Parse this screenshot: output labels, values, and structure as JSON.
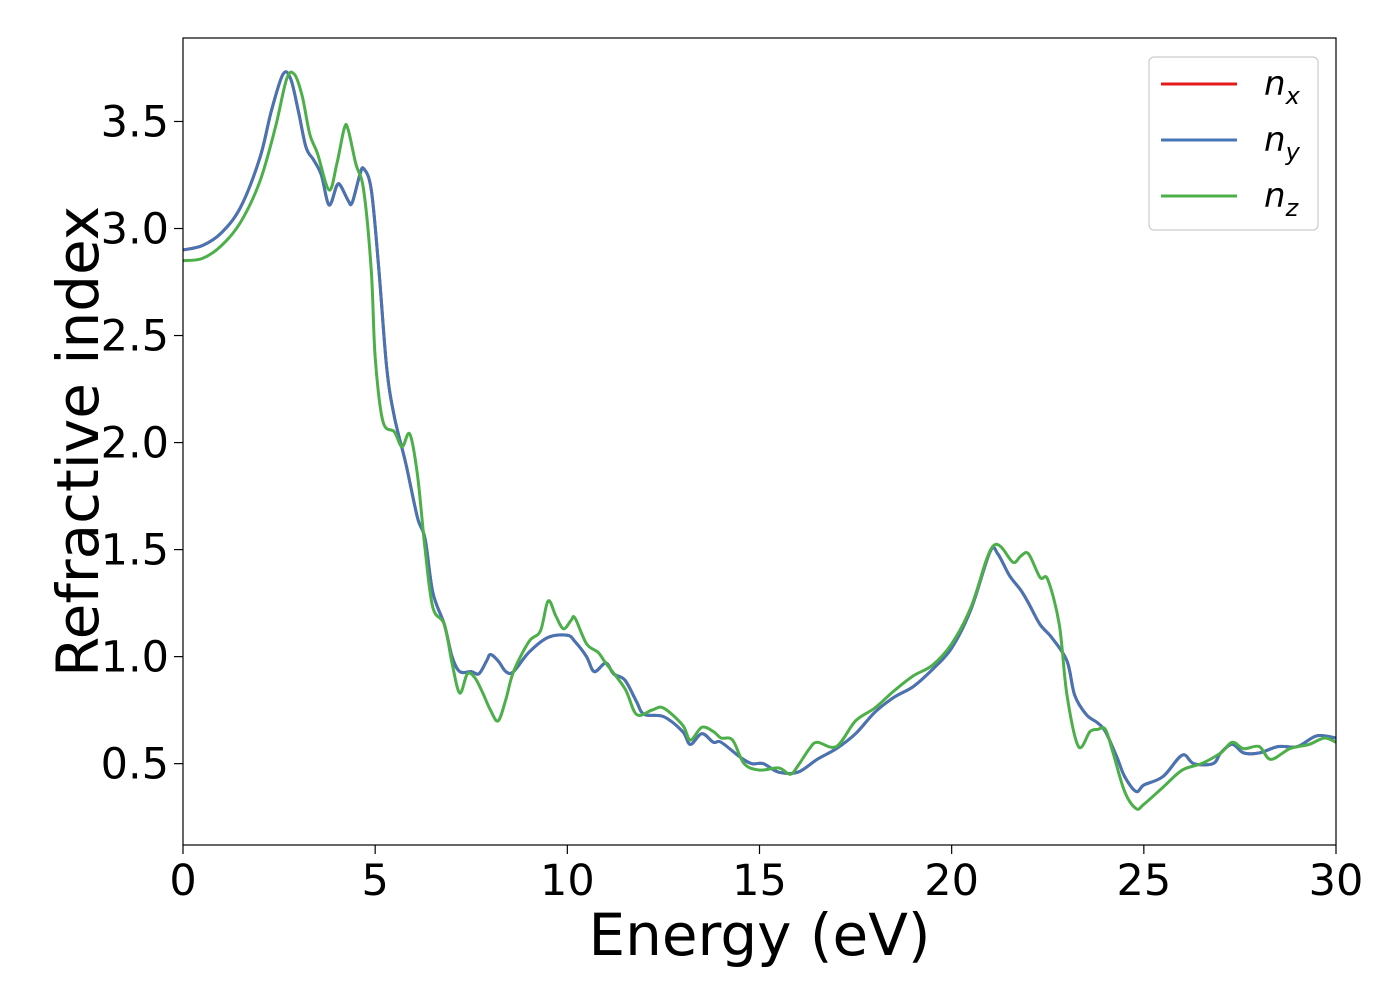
{
  "chart_data": {
    "type": "line",
    "title": "",
    "xlabel": "Energy (eV)",
    "ylabel": "Refractive index",
    "xlim": [
      0,
      30
    ],
    "ylim": [
      0.12,
      3.89
    ],
    "xticks": [
      0,
      5,
      10,
      15,
      20,
      25,
      30
    ],
    "xtick_labels": [
      "0",
      "5",
      "10",
      "15",
      "20",
      "25",
      "30"
    ],
    "yticks": [
      0.5,
      1.0,
      1.5,
      2.0,
      2.5,
      3.0,
      3.5
    ],
    "ytick_labels": [
      "0.5",
      "1.0",
      "1.5",
      "2.0",
      "2.5",
      "3.0",
      "3.5"
    ],
    "grid": false,
    "legend_position": "top-right",
    "series": [
      {
        "name": "n_x",
        "label_base": "n",
        "label_sub": "x",
        "color": "#e41a1c",
        "points": [
          [
            0,
            2.9
          ],
          [
            0.5,
            2.92
          ],
          [
            1.0,
            2.98
          ],
          [
            1.5,
            3.1
          ],
          [
            2.0,
            3.33
          ],
          [
            2.3,
            3.55
          ],
          [
            2.6,
            3.72
          ],
          [
            2.8,
            3.7
          ],
          [
            3.0,
            3.55
          ],
          [
            3.2,
            3.38
          ],
          [
            3.4,
            3.32
          ],
          [
            3.6,
            3.25
          ],
          [
            3.8,
            3.11
          ],
          [
            4.0,
            3.2
          ],
          [
            4.1,
            3.2
          ],
          [
            4.3,
            3.13
          ],
          [
            4.4,
            3.12
          ],
          [
            4.6,
            3.25
          ],
          [
            4.7,
            3.28
          ],
          [
            4.9,
            3.18
          ],
          [
            5.1,
            2.8
          ],
          [
            5.3,
            2.35
          ],
          [
            5.5,
            2.12
          ],
          [
            5.8,
            1.9
          ],
          [
            6.1,
            1.65
          ],
          [
            6.3,
            1.55
          ],
          [
            6.5,
            1.3
          ],
          [
            6.8,
            1.15
          ],
          [
            7.0,
            1.0
          ],
          [
            7.2,
            0.93
          ],
          [
            7.5,
            0.93
          ],
          [
            7.7,
            0.92
          ],
          [
            7.9,
            0.98
          ],
          [
            8.0,
            1.01
          ],
          [
            8.2,
            0.98
          ],
          [
            8.4,
            0.93
          ],
          [
            8.6,
            0.93
          ],
          [
            9.0,
            1.02
          ],
          [
            9.5,
            1.09
          ],
          [
            10.0,
            1.1
          ],
          [
            10.2,
            1.07
          ],
          [
            10.5,
            1.0
          ],
          [
            10.7,
            0.93
          ],
          [
            11.0,
            0.97
          ],
          [
            11.2,
            0.92
          ],
          [
            11.5,
            0.89
          ],
          [
            11.8,
            0.79
          ],
          [
            12.0,
            0.73
          ],
          [
            12.5,
            0.72
          ],
          [
            13.0,
            0.65
          ],
          [
            13.2,
            0.59
          ],
          [
            13.5,
            0.64
          ],
          [
            13.8,
            0.6
          ],
          [
            14.0,
            0.6
          ],
          [
            14.5,
            0.53
          ],
          [
            14.8,
            0.5
          ],
          [
            15.1,
            0.5
          ],
          [
            15.5,
            0.46
          ],
          [
            16.0,
            0.46
          ],
          [
            16.5,
            0.52
          ],
          [
            17.0,
            0.57
          ],
          [
            17.5,
            0.64
          ],
          [
            18.0,
            0.74
          ],
          [
            18.5,
            0.81
          ],
          [
            19.0,
            0.86
          ],
          [
            19.5,
            0.94
          ],
          [
            20.0,
            1.04
          ],
          [
            20.5,
            1.22
          ],
          [
            21.0,
            1.49
          ],
          [
            21.2,
            1.48
          ],
          [
            21.5,
            1.38
          ],
          [
            21.8,
            1.31
          ],
          [
            22.0,
            1.25
          ],
          [
            22.3,
            1.15
          ],
          [
            22.6,
            1.09
          ],
          [
            23.0,
            0.98
          ],
          [
            23.2,
            0.82
          ],
          [
            23.5,
            0.73
          ],
          [
            23.8,
            0.69
          ],
          [
            24.0,
            0.65
          ],
          [
            24.3,
            0.53
          ],
          [
            24.5,
            0.44
          ],
          [
            24.8,
            0.37
          ],
          [
            25.0,
            0.4
          ],
          [
            25.5,
            0.44
          ],
          [
            26.0,
            0.54
          ],
          [
            26.3,
            0.5
          ],
          [
            26.8,
            0.5
          ],
          [
            27.0,
            0.55
          ],
          [
            27.3,
            0.59
          ],
          [
            27.6,
            0.55
          ],
          [
            28.0,
            0.55
          ],
          [
            28.5,
            0.58
          ],
          [
            29.0,
            0.58
          ],
          [
            29.5,
            0.63
          ],
          [
            30.0,
            0.62
          ]
        ]
      },
      {
        "name": "n_y",
        "label_base": "n",
        "label_sub": "y",
        "color": "#4575b4",
        "points": [
          [
            0,
            2.9
          ],
          [
            0.5,
            2.92
          ],
          [
            1.0,
            2.98
          ],
          [
            1.5,
            3.1
          ],
          [
            2.0,
            3.33
          ],
          [
            2.3,
            3.55
          ],
          [
            2.6,
            3.72
          ],
          [
            2.8,
            3.7
          ],
          [
            3.0,
            3.55
          ],
          [
            3.2,
            3.38
          ],
          [
            3.4,
            3.32
          ],
          [
            3.6,
            3.25
          ],
          [
            3.8,
            3.11
          ],
          [
            4.0,
            3.2
          ],
          [
            4.1,
            3.2
          ],
          [
            4.3,
            3.13
          ],
          [
            4.4,
            3.12
          ],
          [
            4.6,
            3.25
          ],
          [
            4.7,
            3.28
          ],
          [
            4.9,
            3.18
          ],
          [
            5.1,
            2.8
          ],
          [
            5.3,
            2.35
          ],
          [
            5.5,
            2.12
          ],
          [
            5.8,
            1.9
          ],
          [
            6.1,
            1.65
          ],
          [
            6.3,
            1.55
          ],
          [
            6.5,
            1.3
          ],
          [
            6.8,
            1.15
          ],
          [
            7.0,
            1.0
          ],
          [
            7.2,
            0.93
          ],
          [
            7.5,
            0.93
          ],
          [
            7.7,
            0.92
          ],
          [
            7.9,
            0.98
          ],
          [
            8.0,
            1.01
          ],
          [
            8.2,
            0.98
          ],
          [
            8.4,
            0.93
          ],
          [
            8.6,
            0.93
          ],
          [
            9.0,
            1.02
          ],
          [
            9.5,
            1.09
          ],
          [
            10.0,
            1.1
          ],
          [
            10.2,
            1.07
          ],
          [
            10.5,
            1.0
          ],
          [
            10.7,
            0.93
          ],
          [
            11.0,
            0.97
          ],
          [
            11.2,
            0.92
          ],
          [
            11.5,
            0.89
          ],
          [
            11.8,
            0.79
          ],
          [
            12.0,
            0.73
          ],
          [
            12.5,
            0.72
          ],
          [
            13.0,
            0.65
          ],
          [
            13.2,
            0.59
          ],
          [
            13.5,
            0.64
          ],
          [
            13.8,
            0.6
          ],
          [
            14.0,
            0.6
          ],
          [
            14.5,
            0.53
          ],
          [
            14.8,
            0.5
          ],
          [
            15.1,
            0.5
          ],
          [
            15.5,
            0.46
          ],
          [
            16.0,
            0.46
          ],
          [
            16.5,
            0.52
          ],
          [
            17.0,
            0.57
          ],
          [
            17.5,
            0.64
          ],
          [
            18.0,
            0.74
          ],
          [
            18.5,
            0.81
          ],
          [
            19.0,
            0.86
          ],
          [
            19.5,
            0.94
          ],
          [
            20.0,
            1.04
          ],
          [
            20.5,
            1.22
          ],
          [
            21.0,
            1.49
          ],
          [
            21.2,
            1.48
          ],
          [
            21.5,
            1.38
          ],
          [
            21.8,
            1.31
          ],
          [
            22.0,
            1.25
          ],
          [
            22.3,
            1.15
          ],
          [
            22.6,
            1.09
          ],
          [
            23.0,
            0.98
          ],
          [
            23.2,
            0.82
          ],
          [
            23.5,
            0.73
          ],
          [
            23.8,
            0.69
          ],
          [
            24.0,
            0.65
          ],
          [
            24.3,
            0.53
          ],
          [
            24.5,
            0.44
          ],
          [
            24.8,
            0.37
          ],
          [
            25.0,
            0.4
          ],
          [
            25.5,
            0.44
          ],
          [
            26.0,
            0.54
          ],
          [
            26.3,
            0.5
          ],
          [
            26.8,
            0.5
          ],
          [
            27.0,
            0.55
          ],
          [
            27.3,
            0.59
          ],
          [
            27.6,
            0.55
          ],
          [
            28.0,
            0.55
          ],
          [
            28.5,
            0.58
          ],
          [
            29.0,
            0.58
          ],
          [
            29.5,
            0.63
          ],
          [
            30.0,
            0.62
          ]
        ]
      },
      {
        "name": "n_z",
        "label_base": "n",
        "label_sub": "z",
        "color": "#4daf4a",
        "points": [
          [
            0,
            2.85
          ],
          [
            0.5,
            2.86
          ],
          [
            1.0,
            2.92
          ],
          [
            1.5,
            3.03
          ],
          [
            2.0,
            3.22
          ],
          [
            2.4,
            3.47
          ],
          [
            2.7,
            3.7
          ],
          [
            2.9,
            3.72
          ],
          [
            3.1,
            3.62
          ],
          [
            3.3,
            3.44
          ],
          [
            3.5,
            3.35
          ],
          [
            3.8,
            3.18
          ],
          [
            4.0,
            3.3
          ],
          [
            4.2,
            3.47
          ],
          [
            4.3,
            3.46
          ],
          [
            4.5,
            3.3
          ],
          [
            4.7,
            3.18
          ],
          [
            4.9,
            2.8
          ],
          [
            5.0,
            2.4
          ],
          [
            5.2,
            2.1
          ],
          [
            5.5,
            2.05
          ],
          [
            5.7,
            1.98
          ],
          [
            5.9,
            2.04
          ],
          [
            6.1,
            1.85
          ],
          [
            6.3,
            1.5
          ],
          [
            6.5,
            1.23
          ],
          [
            6.8,
            1.15
          ],
          [
            7.0,
            0.97
          ],
          [
            7.2,
            0.83
          ],
          [
            7.4,
            0.92
          ],
          [
            7.6,
            0.9
          ],
          [
            7.8,
            0.83
          ],
          [
            8.0,
            0.75
          ],
          [
            8.2,
            0.7
          ],
          [
            8.4,
            0.8
          ],
          [
            8.6,
            0.93
          ],
          [
            9.0,
            1.07
          ],
          [
            9.3,
            1.12
          ],
          [
            9.5,
            1.26
          ],
          [
            9.7,
            1.19
          ],
          [
            9.9,
            1.13
          ],
          [
            10.1,
            1.17
          ],
          [
            10.2,
            1.18
          ],
          [
            10.5,
            1.06
          ],
          [
            10.8,
            1.02
          ],
          [
            11.0,
            0.97
          ],
          [
            11.5,
            0.85
          ],
          [
            11.8,
            0.73
          ],
          [
            12.2,
            0.75
          ],
          [
            12.5,
            0.76
          ],
          [
            13.0,
            0.68
          ],
          [
            13.2,
            0.61
          ],
          [
            13.5,
            0.67
          ],
          [
            13.8,
            0.65
          ],
          [
            14.0,
            0.62
          ],
          [
            14.3,
            0.61
          ],
          [
            14.6,
            0.5
          ],
          [
            15.0,
            0.47
          ],
          [
            15.5,
            0.48
          ],
          [
            15.8,
            0.45
          ],
          [
            16.0,
            0.49
          ],
          [
            16.3,
            0.57
          ],
          [
            16.5,
            0.6
          ],
          [
            17.0,
            0.58
          ],
          [
            17.5,
            0.7
          ],
          [
            18.0,
            0.76
          ],
          [
            18.5,
            0.84
          ],
          [
            19.0,
            0.91
          ],
          [
            19.5,
            0.96
          ],
          [
            20.0,
            1.06
          ],
          [
            20.5,
            1.23
          ],
          [
            20.9,
            1.45
          ],
          [
            21.1,
            1.52
          ],
          [
            21.3,
            1.51
          ],
          [
            21.6,
            1.44
          ],
          [
            21.8,
            1.47
          ],
          [
            22.0,
            1.48
          ],
          [
            22.3,
            1.37
          ],
          [
            22.5,
            1.36
          ],
          [
            22.8,
            1.15
          ],
          [
            23.0,
            0.82
          ],
          [
            23.3,
            0.58
          ],
          [
            23.6,
            0.65
          ],
          [
            23.8,
            0.66
          ],
          [
            24.0,
            0.66
          ],
          [
            24.2,
            0.55
          ],
          [
            24.5,
            0.37
          ],
          [
            24.8,
            0.29
          ],
          [
            25.0,
            0.31
          ],
          [
            25.5,
            0.39
          ],
          [
            26.0,
            0.47
          ],
          [
            26.5,
            0.5
          ],
          [
            27.0,
            0.55
          ],
          [
            27.3,
            0.6
          ],
          [
            27.6,
            0.57
          ],
          [
            28.0,
            0.58
          ],
          [
            28.3,
            0.52
          ],
          [
            28.8,
            0.57
          ],
          [
            29.3,
            0.59
          ],
          [
            29.7,
            0.62
          ],
          [
            30.0,
            0.6
          ]
        ]
      }
    ]
  }
}
